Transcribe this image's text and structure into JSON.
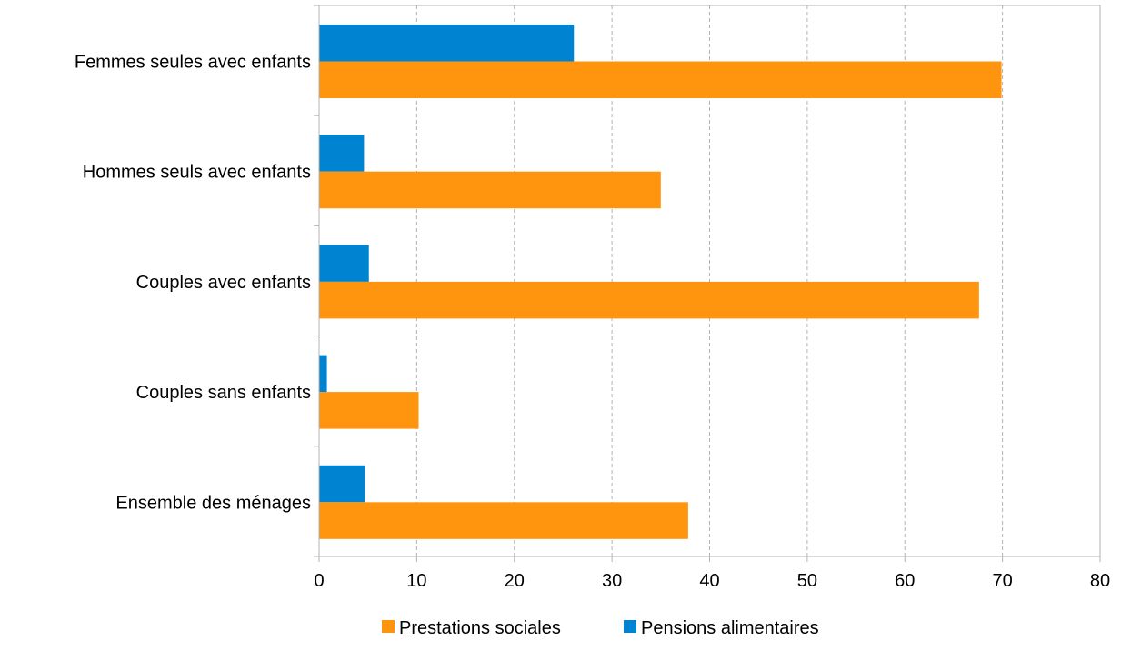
{
  "chart_data": {
    "type": "bar",
    "orientation": "horizontal",
    "categories": [
      "Femmes seules avec enfants",
      "Hommes seuls avec enfants",
      "Couples avec enfants",
      "Couples sans enfants",
      "Ensemble des ménages"
    ],
    "series": [
      {
        "name": "Prestations sociales",
        "color": "#ff950e",
        "values": [
          69.9,
          35.0,
          67.6,
          10.2,
          37.8
        ]
      },
      {
        "name": "Pensions alimentaires",
        "color": "#0084d1",
        "values": [
          26.1,
          4.6,
          5.1,
          0.8,
          4.7
        ]
      }
    ],
    "x_ticks": [
      "0",
      "10",
      "20",
      "30",
      "40",
      "50",
      "60",
      "70",
      "80"
    ],
    "xlim": [
      0,
      80
    ],
    "grid": "vertical dashed",
    "legend_position": "bottom-center"
  }
}
